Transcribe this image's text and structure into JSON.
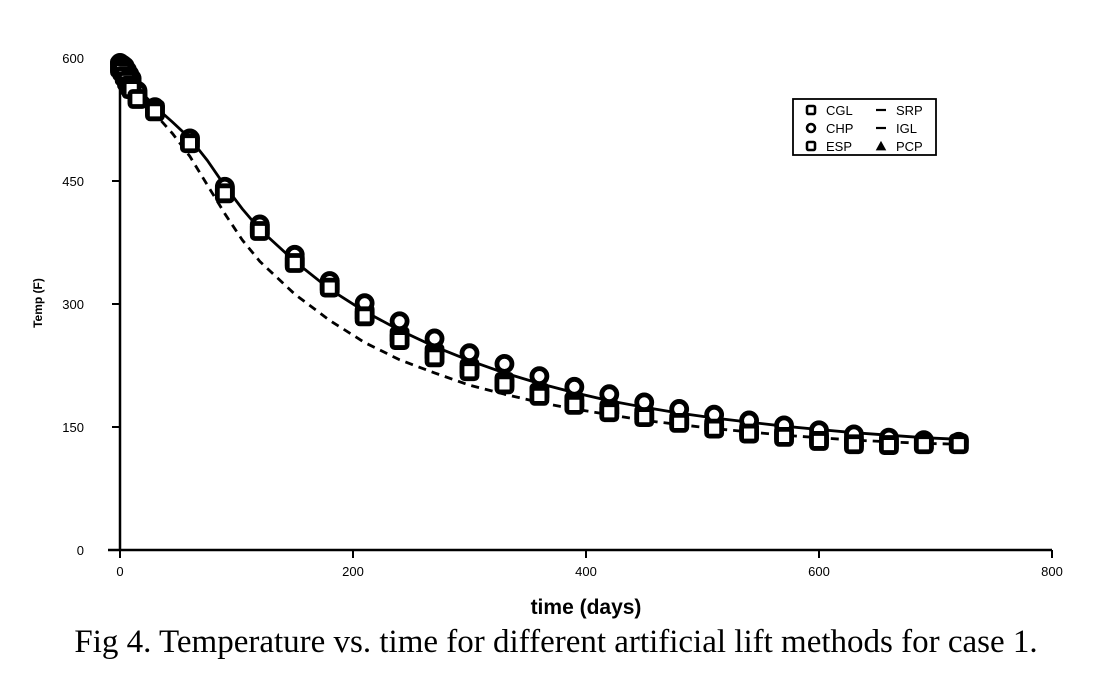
{
  "caption": "Fig 4. Temperature vs. time for different artificial lift methods for case 1.",
  "chart_data": {
    "type": "scatter",
    "title": "",
    "xlabel": "time (days)",
    "ylabel": "Temp (F)",
    "xlim": [
      0,
      800
    ],
    "ylim": [
      0,
      600
    ],
    "xticks": [
      0,
      200,
      400,
      600,
      800
    ],
    "yticks": [
      0,
      150,
      300,
      450,
      600
    ],
    "grid": false,
    "legend_position": "top-right",
    "legend": [
      {
        "name": "CGL",
        "marker": "square"
      },
      {
        "name": "SRP",
        "marker": "dash"
      },
      {
        "name": "CHP",
        "marker": "circle"
      },
      {
        "name": "IGL",
        "marker": "dash"
      },
      {
        "name": "ESP",
        "marker": "square"
      },
      {
        "name": "PCP",
        "marker": "triangle"
      }
    ],
    "curves": [
      {
        "style": "solid",
        "x": [
          0,
          15,
          30,
          45,
          60,
          75,
          90,
          105,
          120,
          150,
          180,
          210,
          240,
          270,
          300,
          330,
          360,
          390,
          420,
          450,
          480,
          510,
          540,
          570,
          600,
          630,
          660,
          690,
          720
        ],
        "y": [
          592,
          563,
          541,
          522,
          502,
          475,
          444,
          416,
          391,
          352,
          318,
          291,
          268,
          248,
          231,
          216,
          203,
          192,
          182,
          174,
          167,
          161,
          156,
          151,
          147,
          143,
          140,
          137,
          135
        ]
      },
      {
        "style": "dashed",
        "x": [
          0,
          15,
          30,
          45,
          60,
          75,
          90,
          105,
          120,
          150,
          180,
          210,
          240,
          270,
          300,
          330,
          360,
          390,
          420,
          450,
          480,
          510,
          540,
          570,
          600,
          630,
          660,
          690,
          720
        ],
        "y": [
          592,
          560,
          532,
          508,
          480,
          445,
          410,
          378,
          352,
          312,
          280,
          253,
          232,
          216,
          201,
          190,
          180,
          172,
          165,
          158,
          153,
          148,
          144,
          140,
          137,
          134,
          132,
          130,
          129
        ]
      }
    ],
    "series": [
      {
        "marker": "square",
        "x": [
          0,
          2,
          4,
          6,
          8,
          10,
          15,
          30,
          60,
          90,
          120,
          150,
          180,
          210,
          240,
          270,
          300,
          330,
          360,
          390,
          420,
          450,
          480,
          510,
          540,
          570,
          600,
          630,
          660,
          690,
          720
        ],
        "y": [
          590,
          586,
          582,
          576,
          571,
          566,
          553,
          537,
          498,
          437,
          391,
          352,
          323,
          288,
          261,
          240,
          222,
          205,
          192,
          181,
          172,
          165,
          158,
          151,
          145,
          141,
          136,
          132,
          130,
          130,
          130
        ]
      },
      {
        "marker": "circle",
        "x": [
          0,
          2,
          4,
          6,
          8,
          10,
          15,
          30,
          60,
          90,
          120,
          150,
          180,
          210,
          240,
          270,
          300,
          330,
          360,
          390,
          420,
          450,
          480,
          510,
          540,
          570,
          600,
          630,
          660,
          690,
          720
        ],
        "y": [
          594,
          592,
          590,
          585,
          580,
          575,
          560,
          540,
          502,
          443,
          397,
          360,
          328,
          301,
          279,
          258,
          240,
          227,
          212,
          199,
          190,
          180,
          172,
          165,
          158,
          152,
          146,
          141,
          137,
          134,
          132
        ]
      },
      {
        "marker": "square",
        "x": [
          0,
          2,
          4,
          6,
          8,
          10,
          15,
          30,
          60,
          90,
          120,
          150,
          180,
          210,
          240,
          270,
          300,
          330,
          360,
          390,
          420,
          450,
          480,
          510,
          540,
          570,
          600,
          630,
          660,
          690,
          720
        ],
        "y": [
          588,
          584,
          578,
          572,
          566,
          562,
          550,
          535,
          496,
          435,
          389,
          350,
          320,
          285,
          256,
          235,
          218,
          202,
          188,
          177,
          168,
          162,
          155,
          148,
          142,
          138,
          133,
          129,
          128,
          129,
          129
        ]
      }
    ]
  }
}
